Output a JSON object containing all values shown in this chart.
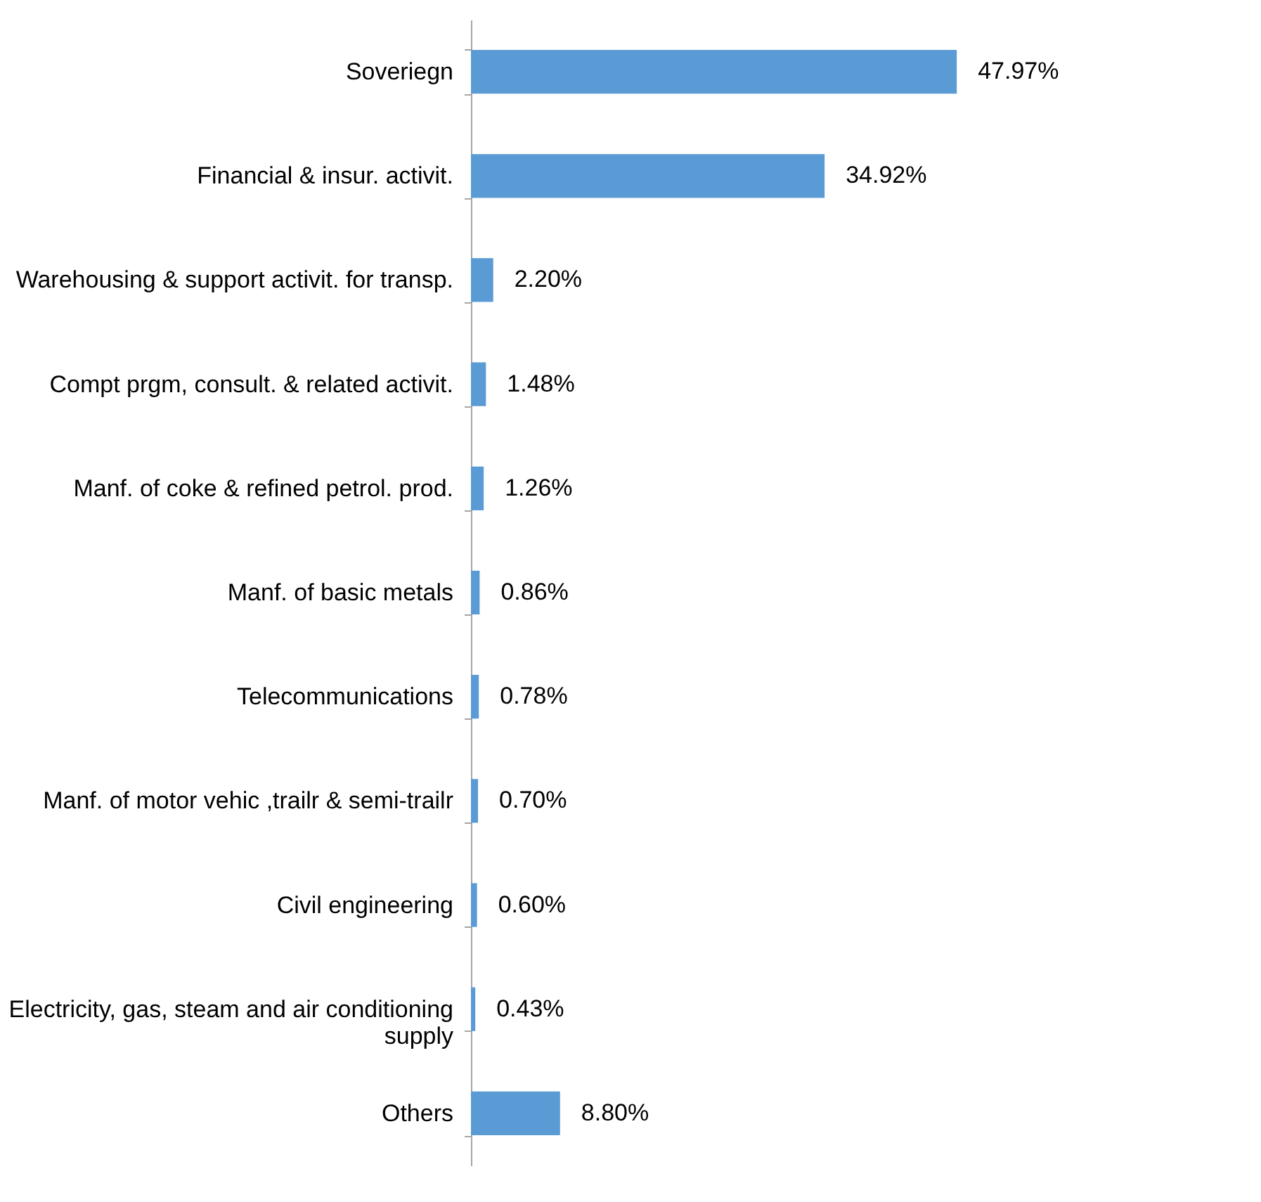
{
  "chart_data": {
    "type": "bar",
    "orientation": "horizontal",
    "categories": [
      "Soveriegn",
      "Financial & insur. activit.",
      "Warehousing & support activit. for transp.",
      "Compt prgm, consult. & related activit.",
      "Manf. of coke & refined petrol. prod.",
      "Manf. of basic metals",
      "Telecommunications",
      "Manf. of motor vehic ,trailr & semi-trailr",
      "Civil engineering",
      "Electricity, gas, steam and air conditioning supply",
      "Others"
    ],
    "values": [
      47.97,
      34.92,
      2.2,
      1.48,
      1.26,
      0.86,
      0.78,
      0.7,
      0.6,
      0.43,
      8.8
    ],
    "value_labels": [
      "47.97%",
      "34.92%",
      "2.20%",
      "1.48%",
      "1.26%",
      "0.86%",
      "0.78%",
      "0.70%",
      "0.60%",
      "0.43%",
      "8.80%"
    ],
    "color": "#5b9bd5",
    "grid": false
  }
}
